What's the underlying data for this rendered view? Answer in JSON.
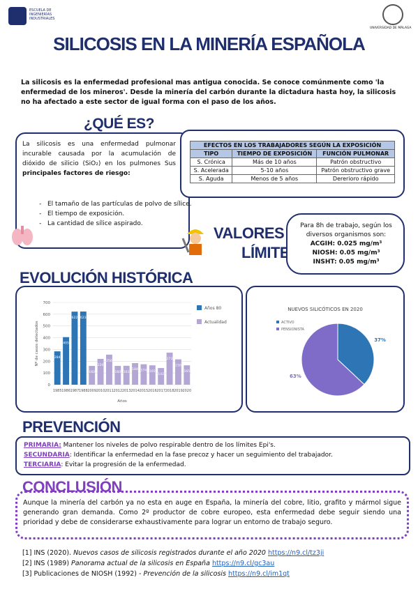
{
  "header": {
    "school": "ESCUELA DE INGENIERÍAS INDUSTRIALES",
    "university": "UNIVERSIDAD DE MÁLAGA",
    "title": "SILICOSIS EN LA MINERÍA ESPAÑOLA"
  },
  "intro": "La silicosis es la enfermedad profesional mas antigua conocida. Se conoce comúnmente como 'la enfermedad de los mineros'. Desde la minería del carbón durante la dictadura hasta hoy, la silicosis no ha afectado a este sector de igual forma con el paso de los años.",
  "que_es": {
    "heading": "¿QUÉ ES?",
    "text": "La silicosis es una enfermedad pulmonar incurable causada por la acumulación de dióxido de silicio (SiO₂) en los pulmones Sus ",
    "bold": "principales factores de riesgo:",
    "items": [
      "El tamaño de las partículas de polvo de sílice.",
      "El tiempo de exposición.",
      "La cantidad de sílice aspirado."
    ]
  },
  "table": {
    "caption": "EFECTOS EN LOS TRABAJADORES SEGÚN LA EXPOSICIÓN",
    "header": [
      "TIPO",
      "TIEMPO DE EXPOSICIÓN",
      "FUNCIÓN PULMONAR"
    ],
    "rows": [
      [
        "S. Crónica",
        "Más de 10 años",
        "Patrón obstructivo"
      ],
      [
        "S. Acelerada",
        "5-10 años",
        "Patrón obstructivo grave"
      ],
      [
        "S. Aguda",
        "Menos de 5 años",
        "Dererioro rápido"
      ]
    ]
  },
  "valores": {
    "heading_1": "VALORES",
    "heading_2": "LÍMITE",
    "intro": "Para 8h de trabajo, según los diversos organismos son:",
    "limits": [
      "ACGIH: 0.025 mg/m³",
      "NIOSH: 0.05 mg/m³",
      "INSHT: 0.05 mg/m³"
    ]
  },
  "evolucion": {
    "heading": "EVOLUCIÓN HISTÓRICA"
  },
  "chart_data": [
    {
      "type": "bar",
      "x_label": "Años",
      "y_label": "Nº de casos detectados",
      "categories": [
        "1985",
        "1986",
        "1987",
        "1988",
        "2009",
        "2010",
        "2011",
        "2012",
        "2013",
        "2014",
        "2015",
        "2016",
        "2017",
        "2018",
        "2019",
        "2020"
      ],
      "series": [
        {
          "name": "Años 80",
          "color": "#2e75b6",
          "values": [
            284,
            405,
            622,
            623,
            null,
            null,
            null,
            null,
            null,
            null,
            null,
            null,
            null,
            null,
            null,
            null
          ]
        },
        {
          "name": "Actualidad",
          "color": "#b4a7d6",
          "values": [
            null,
            null,
            null,
            null,
            160,
            220,
            256,
            160,
            161,
            184,
            174,
            165,
            142,
            273,
            216,
            165
          ]
        }
      ],
      "ylim": [
        0,
        700
      ],
      "yticks": [
        0,
        100,
        200,
        300,
        400,
        500,
        600,
        700
      ],
      "grid": true
    },
    {
      "type": "pie",
      "title": "NUEVOS SILICÓTICOS EN 2020",
      "categories": [
        "ACTIVO",
        "PENSIONISTA"
      ],
      "values": [
        37,
        63
      ],
      "value_labels": [
        "37%",
        "63%"
      ],
      "colors": [
        "#2e75b6",
        "#7f6bc8"
      ]
    }
  ],
  "prevencion": {
    "heading": "PREVENCIÓN",
    "items": [
      {
        "label": "PRIMARIA:",
        "text": " Mantener los niveles de polvo respirable dentro de los límites Epi's."
      },
      {
        "label": "SECUNDARIA",
        "text": ": Identificar la enfermedad en la fase precoz y hacer un seguimiento del trabajador."
      },
      {
        "label": "TERCIARIA",
        "text": ": Evitar la progresión de la enfermedad."
      }
    ]
  },
  "conclusion": {
    "heading": "CONCLUSIÓN",
    "text": "Aunque la minería del carbón ya no esta en auge en España, la minería del cobre, litio, grafito y mármol sigue generando gran demanda. Como 2º productor de cobre europeo, esta enfermedad debe seguir siendo una prioridad y debe de considerarse exhaustivamente para lograr un entorno de trabajo seguro."
  },
  "references": [
    {
      "label": "[1] INS (2020). ",
      "title": "Nuevos casos de silicosis registrados durante el año 2020",
      "link": "https://n9.cl/tz3ji"
    },
    {
      "label": "[2] INS (1989) ",
      "title": "Panorama actual de la silicosis en España",
      "link": "https://n9.cl/gc3au"
    },
    {
      "label": "[3] Publicaciones de NIOSH (1992) - ",
      "title": "Prevención de la silicosis",
      "link": "https://n9.cl/im1qt"
    }
  ]
}
